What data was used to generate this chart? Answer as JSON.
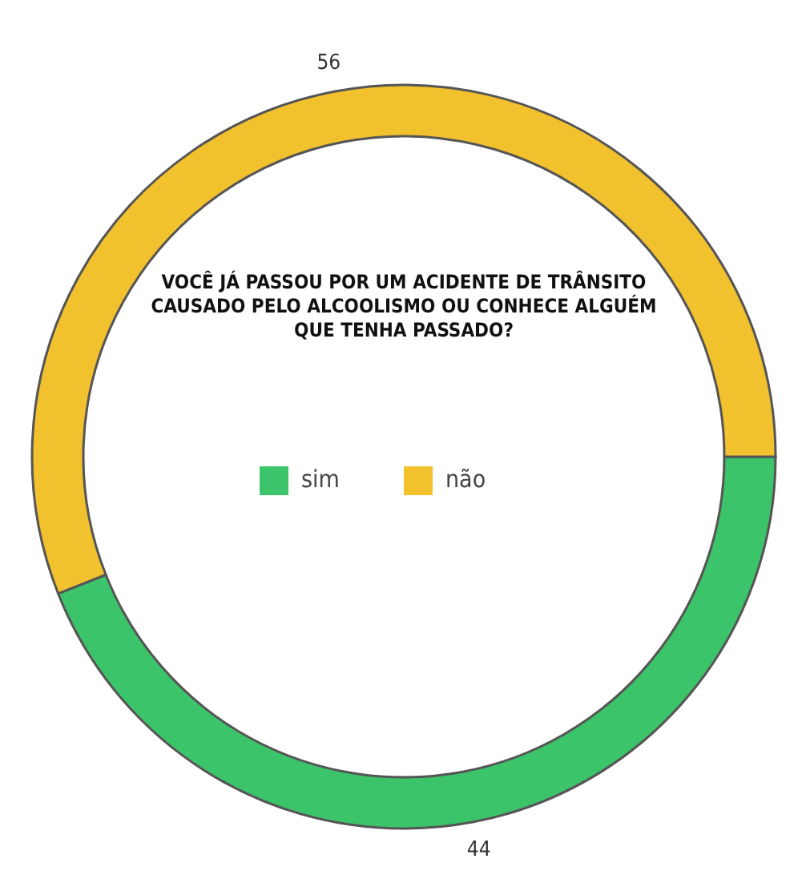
{
  "chart_data": {
    "type": "donut",
    "title": "VOCÊ JÁ PASSOU POR UM ACIDENTE DE TRÂNSITO CAUSADO PELO ALCOOLISMO OU CONHECE ALGUÉM QUE TENHA PASSADO?",
    "categories": [
      "sim",
      "não"
    ],
    "values": [
      44,
      56
    ],
    "colors": [
      "#3cc46a",
      "#f2c12e"
    ],
    "data_labels": true,
    "legend": "center"
  }
}
